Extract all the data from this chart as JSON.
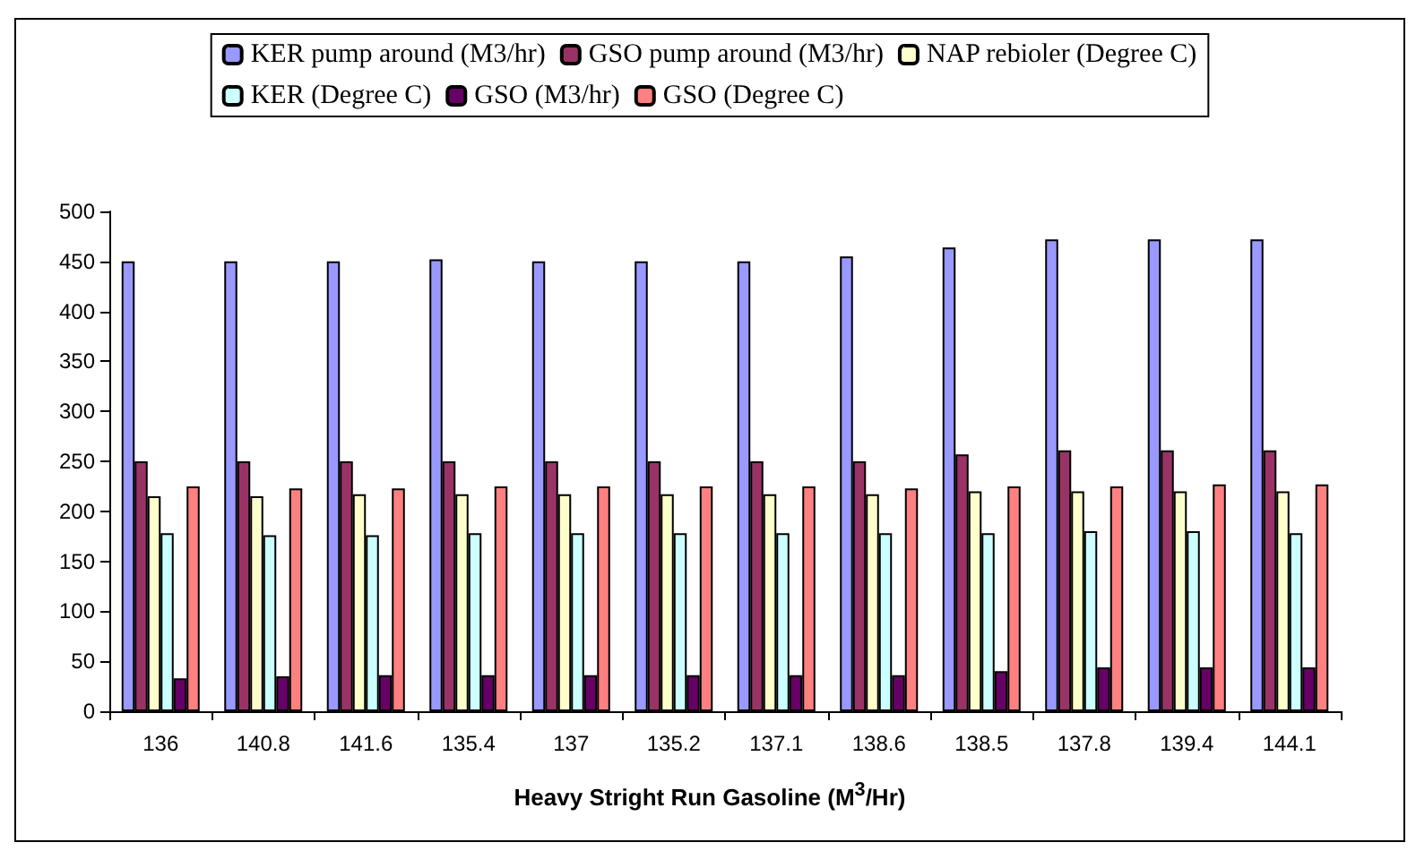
{
  "chart_data": {
    "type": "bar",
    "xlabel": "Heavy Stright Run Gasoline (M$^{3}$/Hr)",
    "categories": [
      "136",
      "140.8",
      "141.6",
      "135.4",
      "137",
      "135.2",
      "137.1",
      "138.6",
      "138.5",
      "137.8",
      "139.4",
      "144.1"
    ],
    "series": [
      {
        "name": "KER pump around (M3/hr)",
        "color": "#9999ff",
        "values": [
          450,
          450,
          450,
          452,
          450,
          450,
          450,
          455,
          464,
          472,
          472,
          472
        ]
      },
      {
        "name": "GSO pump around (M3/hr)",
        "color": "#993366",
        "values": [
          250,
          250,
          250,
          250,
          250,
          250,
          250,
          250,
          257,
          261,
          261,
          261
        ]
      },
      {
        "name": "NAP rebioler (Degree C)",
        "color": "#ffffcc",
        "values": [
          215,
          215,
          217,
          217,
          217,
          217,
          217,
          217,
          220,
          220,
          220,
          220
        ]
      },
      {
        "name": "KER (Degree C)",
        "color": "#ccffff",
        "values": [
          178,
          176,
          176,
          178,
          178,
          178,
          178,
          178,
          178,
          180,
          180,
          178
        ]
      },
      {
        "name": "GSO (M3/hr)",
        "color": "#660066",
        "values": [
          33,
          35,
          36,
          36,
          36,
          36,
          36,
          36,
          40,
          44,
          44,
          44
        ]
      },
      {
        "name": "GSO (Degree C)",
        "color": "#ff8080",
        "values": [
          225,
          223,
          223,
          225,
          225,
          225,
          225,
          223,
          225,
          225,
          227,
          227
        ]
      }
    ],
    "ylim": [
      0,
      500
    ],
    "yticks": [
      0,
      50,
      100,
      150,
      200,
      250,
      300,
      350,
      400,
      450,
      500
    ],
    "grid": false,
    "legend": "top"
  }
}
